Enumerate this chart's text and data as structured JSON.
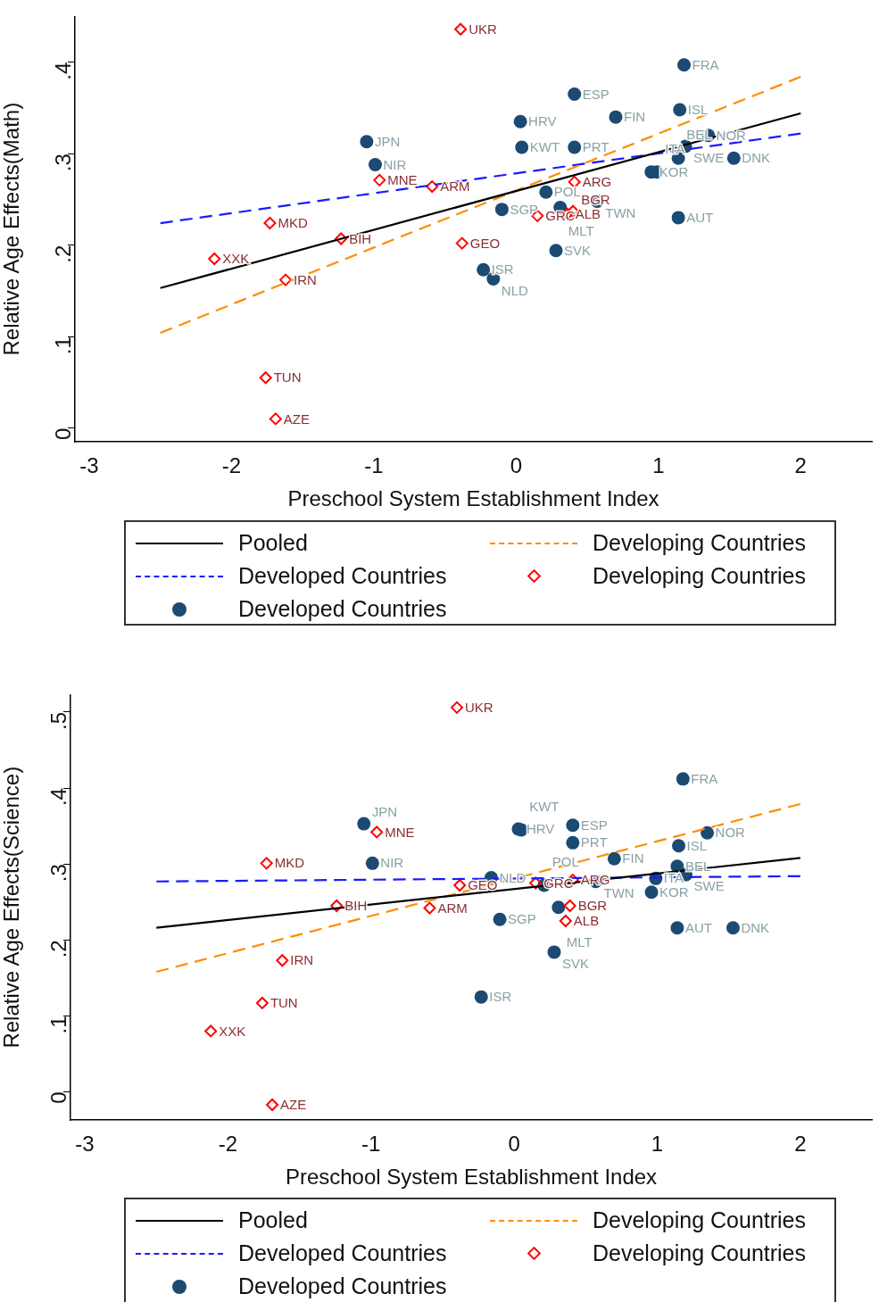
{
  "chart_data": [
    {
      "type": "scatter",
      "xlabel": "Preschool System Establishment Index",
      "ylabel": "Relative Age Effects(Math)",
      "xlim": [
        -3.1,
        2.5
      ],
      "xticks": [
        -3,
        -2,
        -1,
        0,
        1,
        2
      ],
      "ylim": [
        -0.015,
        0.45
      ],
      "yticks": [
        {
          "value": 0,
          "label": "0"
        },
        {
          "value": 0.1,
          "label": ".1"
        },
        {
          "value": 0.2,
          "label": ".2"
        },
        {
          "value": 0.3,
          "label": ".3"
        },
        {
          "value": 0.4,
          "label": ".4"
        }
      ],
      "grid": false,
      "legend": "bottom",
      "series": [
        {
          "type": "line",
          "name": "Pooled",
          "color": "#000000",
          "line_style": "solid",
          "marker": "none",
          "x": [
            -2.5,
            2
          ],
          "values": [
            0.153,
            0.344
          ]
        },
        {
          "type": "line",
          "name": "Developing Countries",
          "color": "#ff8c00",
          "line_style": "dashed",
          "marker": "none",
          "x": [
            -2.5,
            2
          ],
          "values": [
            0.104,
            0.384
          ]
        },
        {
          "type": "line",
          "name": "Developed Countries",
          "color": "#1a1aff",
          "line_style": "dashed",
          "marker": "none",
          "x": [
            -2.5,
            2
          ],
          "values": [
            0.224,
            0.322
          ]
        },
        {
          "type": "scatter",
          "name": "Developing Countries",
          "color": "#ff0000",
          "marker": "diamond",
          "x": [
            -0.39,
            -0.96,
            -0.59,
            0.41,
            -1.73,
            -1.23,
            -0.38,
            0.15,
            0.36,
            0.4,
            -2.12,
            -1.62,
            -1.76,
            -1.69
          ],
          "values": [
            0.436,
            0.271,
            0.264,
            0.269,
            0.224,
            0.207,
            0.202,
            0.232,
            0.234,
            0.237,
            0.185,
            0.162,
            0.055,
            0.01
          ],
          "value_labels": [
            "UKR",
            "MNE",
            "ARM",
            "ARG",
            "MKD",
            "BIH",
            "GEO",
            "GRC",
            "ALB",
            "BGR",
            "XXK",
            "IRN",
            "TUN",
            "AZE"
          ]
        },
        {
          "type": "scatter",
          "name": "Developed Countries",
          "color": "#1b4a72",
          "marker": "circle",
          "x": [
            1.18,
            0.41,
            0.03,
            0.7,
            1.15,
            -1.05,
            -0.99,
            0.04,
            0.41,
            1.35,
            1.19,
            1.14,
            1.53,
            0.95,
            0.99,
            0.21,
            -0.1,
            0.31,
            0.57,
            1.14,
            0.28,
            -0.23,
            -0.16
          ],
          "values": [
            0.397,
            0.365,
            0.335,
            0.34,
            0.348,
            0.313,
            0.288,
            0.307,
            0.307,
            0.32,
            0.308,
            0.295,
            0.295,
            0.28,
            0.28,
            0.258,
            0.239,
            0.241,
            0.248,
            0.23,
            0.194,
            0.173,
            0.163
          ],
          "value_labels": [
            "FRA",
            "ESP",
            "HRV",
            "FIN",
            "ISL",
            "JPN",
            "NIR",
            "KWT",
            "PRT",
            "NOR",
            "SWE",
            "BEL",
            "DNK",
            "KOR",
            "ITA",
            "POL",
            "SGP",
            "MLT",
            "TWN",
            "AUT",
            "SVK",
            "ISR",
            "NLD"
          ]
        }
      ]
    },
    {
      "type": "scatter",
      "xlabel": "Preschool System Establishment Index",
      "ylabel": "Relative Age Effects(Science)",
      "xlim": [
        -3.1,
        2.5
      ],
      "xticks": [
        -3,
        -2,
        -1,
        0,
        1,
        2
      ],
      "ylim": [
        -0.037,
        0.523
      ],
      "yticks": [
        {
          "value": 0,
          "label": "0"
        },
        {
          "value": 0.1,
          "label": ".1"
        },
        {
          "value": 0.2,
          "label": ".2"
        },
        {
          "value": 0.3,
          "label": ".3"
        },
        {
          "value": 0.4,
          "label": ".4"
        },
        {
          "value": 0.5,
          "label": ".5"
        }
      ],
      "grid": false,
      "legend": "bottom",
      "series": [
        {
          "type": "line",
          "name": "Pooled",
          "color": "#000000",
          "line_style": "solid",
          "marker": "none",
          "x": [
            -2.5,
            2
          ],
          "values": [
            0.216,
            0.308
          ]
        },
        {
          "type": "line",
          "name": "Developing Countries",
          "color": "#ff8c00",
          "line_style": "dashed",
          "marker": "none",
          "x": [
            -2.5,
            2
          ],
          "values": [
            0.158,
            0.379
          ]
        },
        {
          "type": "line",
          "name": "Developed Countries",
          "color": "#1a1aff",
          "line_style": "dashed",
          "marker": "none",
          "x": [
            -2.5,
            2
          ],
          "values": [
            0.277,
            0.284
          ]
        },
        {
          "type": "scatter",
          "name": "Developing Countries",
          "color": "#ff0000",
          "marker": "diamond",
          "x": [
            -0.4,
            -0.96,
            -1.73,
            -0.38,
            0.41,
            -1.24,
            -0.59,
            0.39,
            0.36,
            0.15,
            -1.62,
            -1.76,
            -2.12,
            -1.69
          ],
          "values": [
            0.506,
            0.342,
            0.301,
            0.272,
            0.279,
            0.245,
            0.242,
            0.245,
            0.225,
            0.275,
            0.173,
            0.117,
            0.08,
            -0.017
          ],
          "value_labels": [
            "UKR",
            "MNE",
            "MKD",
            "GEO",
            "ARG",
            "BIH",
            "ARM",
            "BGR",
            "ALB",
            "GRC",
            "IRN",
            "TUN",
            "XXK",
            "AZE"
          ]
        },
        {
          "type": "scatter",
          "name": "Developed Countries",
          "color": "#1b4a72",
          "marker": "circle",
          "x": [
            1.18,
            -1.05,
            0.03,
            0.05,
            0.41,
            0.41,
            1.35,
            1.15,
            -0.99,
            0.7,
            1.14,
            1.2,
            0.99,
            0.96,
            0.57,
            -0.16,
            0.21,
            0.31,
            -0.1,
            1.14,
            1.53,
            0.28,
            -0.23
          ],
          "values": [
            0.412,
            0.353,
            0.346,
            0.345,
            0.351,
            0.328,
            0.341,
            0.324,
            0.301,
            0.307,
            0.297,
            0.286,
            0.281,
            0.263,
            0.277,
            0.282,
            0.272,
            0.243,
            0.227,
            0.216,
            0.216,
            0.184,
            0.125
          ],
          "value_labels": [
            "FRA",
            "JPN",
            "HRV",
            "KWT",
            "ESP",
            "PRT",
            "NOR",
            "ISL",
            "NIR",
            "FIN",
            "BEL",
            "SWE",
            "ITA",
            "KOR",
            "TWN",
            "NLD",
            "POL",
            "MLT",
            "SGP",
            "AUT",
            "DNK",
            "SVK",
            "ISR"
          ]
        }
      ]
    }
  ]
}
